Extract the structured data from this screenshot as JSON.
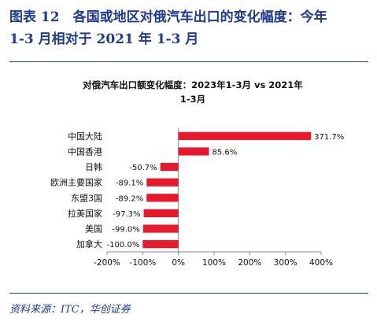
{
  "figure": {
    "title_line1": "图表 12　各国或地区对俄汽车出口的变化幅度：今年",
    "title_line2": "1-3 月相对于 2021 年 1-3 月",
    "source": "资料来源：ITC，华创证券"
  },
  "colors": {
    "accent": "#1f3a93",
    "bar": "#e8192c"
  },
  "chart_data": {
    "type": "bar",
    "orientation": "horizontal",
    "title_line1": "对俄汽车出口额变化幅度：2023年1-3月 vs 2021年",
    "title_line2": "1-3月",
    "categories": [
      "中国大陆",
      "中国香港",
      "日韩",
      "欧洲主要国家",
      "东盟3国",
      "拉美国家",
      "美国",
      "加拿大"
    ],
    "values": [
      371.7,
      85.6,
      -50.7,
      -89.1,
      -89.2,
      -97.3,
      -99.0,
      -100.0
    ],
    "value_labels": [
      "371.7%",
      "85.6%",
      "-50.7%",
      "-89.1%",
      "-89.2%",
      "-97.3%",
      "-99.0%",
      "-100.0%"
    ],
    "xlim": [
      -200,
      400
    ],
    "xticks": [
      -200,
      -100,
      0,
      100,
      200,
      300,
      400
    ],
    "xtick_labels": [
      "-200%",
      "-100%",
      "0%",
      "100%",
      "200%",
      "300%",
      "400%"
    ],
    "grid": false,
    "legend": false
  }
}
